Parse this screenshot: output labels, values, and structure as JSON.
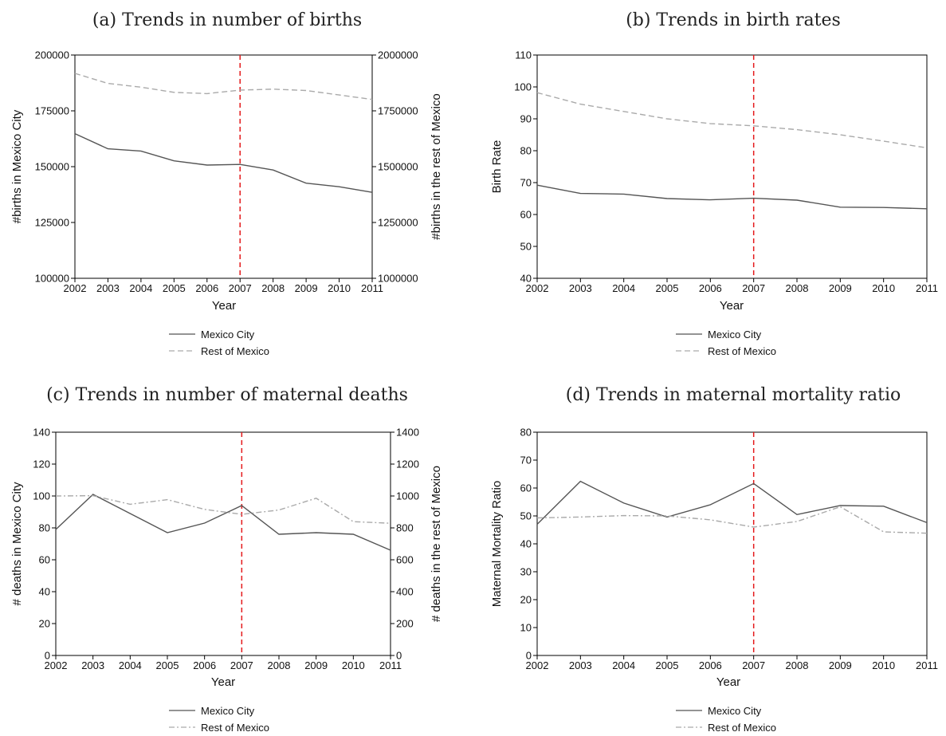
{
  "colors": {
    "mexico_city": "#555555",
    "rest": "#aaaaaa",
    "reform_line": "#e41a1c"
  },
  "legend": {
    "mexico_city": "Mexico City",
    "rest": "Rest of Mexico"
  },
  "chart_data": [
    {
      "type": "line",
      "title": "(a) Trends in number of births",
      "xlabel": "Year",
      "ylabel": "#births in Mexico City",
      "y2label": "#births in the rest of Mexico",
      "x": [
        2002,
        2003,
        2004,
        2005,
        2006,
        2007,
        2008,
        2009,
        2010,
        2011
      ],
      "ylim": [
        100000,
        200000
      ],
      "yticks": [
        100000,
        125000,
        150000,
        175000,
        200000
      ],
      "y2lim": [
        1000000,
        2000000
      ],
      "y2ticks": [
        1000000,
        1250000,
        1500000,
        1750000,
        2000000
      ],
      "reform_year": 2007,
      "series": [
        {
          "name": "Mexico City",
          "axis": "left",
          "style": "solid",
          "values": [
            164800,
            158000,
            157000,
            152600,
            150700,
            151000,
            148500,
            142600,
            141000,
            138500
          ]
        },
        {
          "name": "Rest of Mexico",
          "axis": "right",
          "style": "dashed",
          "values": [
            1918000,
            1873000,
            1856000,
            1833000,
            1827000,
            1843000,
            1847000,
            1841000,
            1821000,
            1801000
          ]
        }
      ]
    },
    {
      "type": "line",
      "title": "(b) Trends in birth rates",
      "xlabel": "Year",
      "ylabel": "Birth Rate",
      "x": [
        2002,
        2003,
        2004,
        2005,
        2006,
        2007,
        2008,
        2009,
        2010,
        2011
      ],
      "ylim": [
        40,
        110
      ],
      "yticks": [
        40,
        50,
        60,
        70,
        80,
        90,
        100,
        110
      ],
      "reform_year": 2007,
      "series": [
        {
          "name": "Mexico City",
          "axis": "left",
          "style": "solid",
          "values": [
            69.2,
            66.6,
            66.4,
            65.0,
            64.6,
            65.1,
            64.5,
            62.3,
            62.2,
            61.8
          ]
        },
        {
          "name": "Rest of Mexico",
          "axis": "left",
          "style": "dashed",
          "values": [
            98.2,
            94.6,
            92.3,
            90.0,
            88.5,
            87.8,
            86.6,
            85.0,
            83.0,
            80.9
          ]
        }
      ]
    },
    {
      "type": "line",
      "title": "(c) Trends in number of maternal deaths",
      "xlabel": "Year",
      "ylabel": "# deaths in Mexico City",
      "y2label": "# deaths in the rest of Mexico",
      "x": [
        2002,
        2003,
        2004,
        2005,
        2006,
        2007,
        2008,
        2009,
        2010,
        2011
      ],
      "ylim": [
        0,
        140
      ],
      "yticks": [
        0,
        20,
        40,
        60,
        80,
        100,
        120,
        140
      ],
      "y2lim": [
        0,
        1400
      ],
      "y2ticks": [
        0,
        200,
        400,
        600,
        800,
        1000,
        1200,
        1400
      ],
      "reform_year": 2007,
      "series": [
        {
          "name": "Mexico City",
          "axis": "left",
          "style": "solid",
          "values": [
            79,
            101,
            89,
            77,
            83,
            94,
            76,
            77,
            76,
            66
          ]
        },
        {
          "name": "Rest of Mexico",
          "axis": "right",
          "style": "dashed",
          "values": [
            1000,
            1002,
            948,
            977,
            916,
            885,
            912,
            986,
            839,
            829
          ]
        }
      ]
    },
    {
      "type": "line",
      "title": "(d) Trends in maternal mortality ratio",
      "xlabel": "Year",
      "ylabel": "Maternal Mortality Ratio",
      "x": [
        2002,
        2003,
        2004,
        2005,
        2006,
        2007,
        2008,
        2009,
        2010,
        2011
      ],
      "ylim": [
        0,
        80
      ],
      "yticks": [
        0,
        10,
        20,
        30,
        40,
        50,
        60,
        70,
        80
      ],
      "reform_year": 2007,
      "series": [
        {
          "name": "Mexico City",
          "axis": "left",
          "style": "solid",
          "values": [
            47.0,
            62.4,
            54.6,
            49.6,
            54.0,
            61.6,
            50.5,
            53.7,
            53.5,
            47.6
          ]
        },
        {
          "name": "Rest of Mexico",
          "axis": "left",
          "style": "dashed",
          "values": [
            49.3,
            49.6,
            50.1,
            50.0,
            48.6,
            46.0,
            48.0,
            53.3,
            44.3,
            43.8
          ]
        }
      ]
    }
  ]
}
